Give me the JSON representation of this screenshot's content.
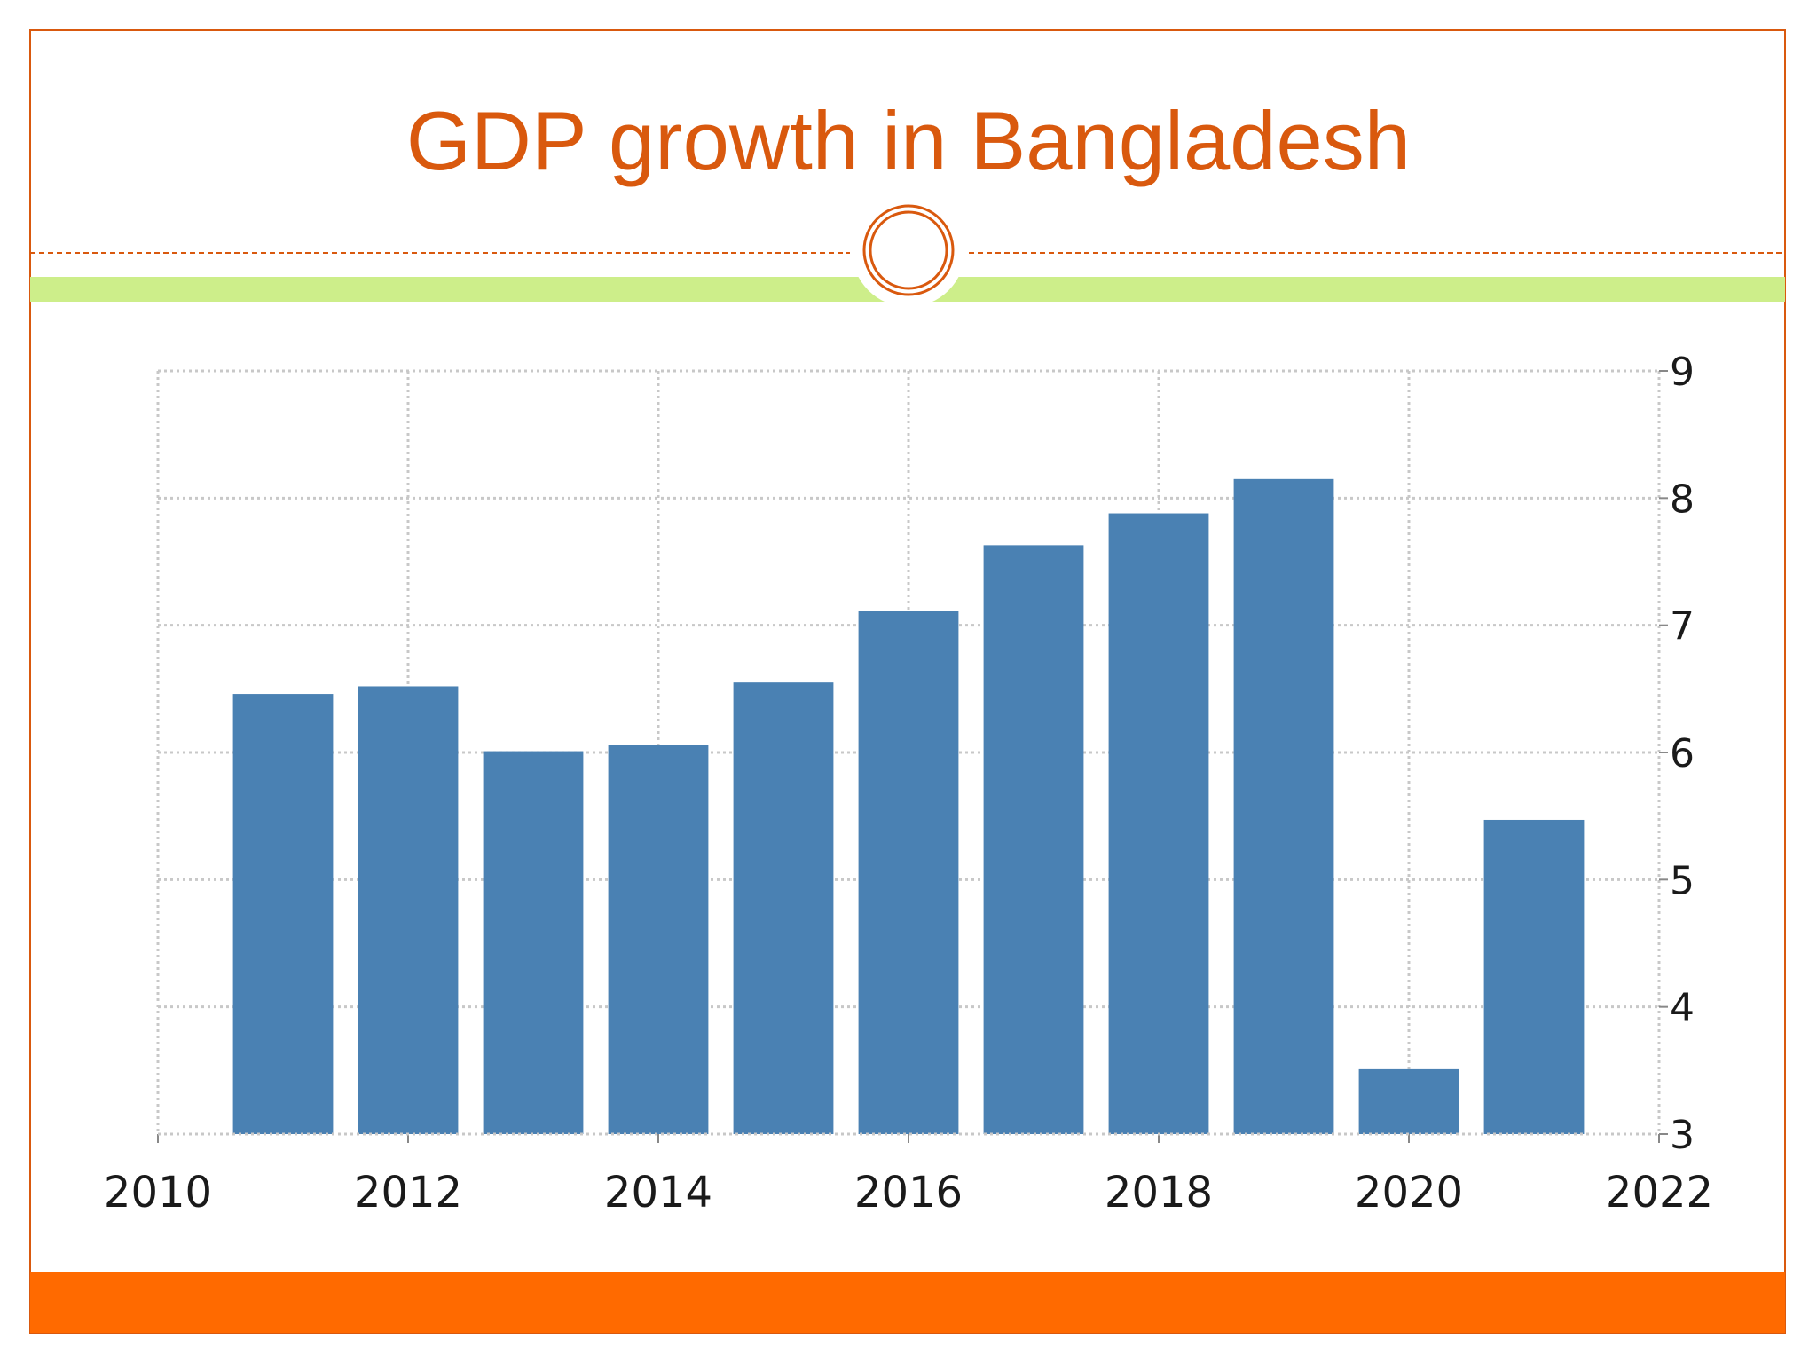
{
  "slide": {
    "title": "GDP growth in Bangladesh"
  },
  "colors": {
    "title": "#d9590e",
    "frame": "#d9590e",
    "accent_band": "#cdee8a",
    "footer_bar": "#ff6a00",
    "bar": "#4a81b3",
    "grid": "#c8c8c8"
  },
  "chart_data": {
    "type": "bar",
    "title": "",
    "xlabel": "",
    "ylabel": "",
    "x": [
      2011,
      2012,
      2013,
      2014,
      2015,
      2016,
      2017,
      2018,
      2019,
      2020,
      2021
    ],
    "values": [
      6.46,
      6.52,
      6.01,
      6.06,
      6.55,
      7.11,
      7.63,
      7.88,
      8.15,
      3.51,
      5.47
    ],
    "xlim": [
      2010,
      2022
    ],
    "ylim": [
      3,
      9
    ],
    "x_ticks": [
      "2010",
      "2012",
      "2014",
      "2016",
      "2018",
      "2020",
      "2022"
    ],
    "y_ticks": [
      "3",
      "4",
      "5",
      "6",
      "7",
      "8",
      "9"
    ],
    "y_axis_side": "right",
    "grid": true,
    "legend": "none"
  }
}
